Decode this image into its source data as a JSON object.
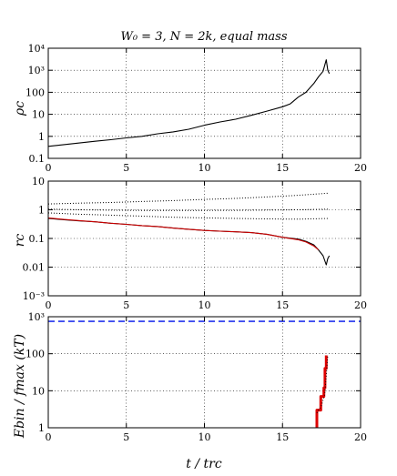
{
  "chart_data": [
    {
      "type": "line",
      "title": "W₀ = 3, N = 2k, equal mass",
      "ylabel": "ρc",
      "xlabel": "",
      "log_y": true,
      "xlim": [
        0,
        20
      ],
      "ylim": [
        0.1,
        10000
      ],
      "grid": true,
      "x_ticks": [
        "0",
        "5",
        "10",
        "15",
        "20"
      ],
      "y_ticks": [
        "0.1",
        "1",
        "10",
        "100",
        "10³",
        "10⁴"
      ],
      "series": [
        {
          "color": "#000000",
          "style": "solid",
          "x": [
            0,
            1,
            2,
            3,
            4,
            5,
            6,
            7,
            8,
            9,
            10,
            11,
            12,
            13,
            14,
            15,
            15.5,
            16,
            16.5,
            17,
            17.3,
            17.6,
            17.8,
            17.9,
            18
          ],
          "y": [
            0.35,
            0.42,
            0.5,
            0.6,
            0.7,
            0.85,
            1.0,
            1.3,
            1.6,
            2.1,
            3.2,
            4.5,
            6,
            9,
            14,
            22,
            30,
            60,
            100,
            250,
            500,
            900,
            3000,
            1000,
            700
          ]
        }
      ]
    },
    {
      "type": "line",
      "ylabel": "rc",
      "xlabel": "",
      "log_y": true,
      "xlim": [
        0,
        20
      ],
      "ylim": [
        0.001,
        10
      ],
      "grid": true,
      "x_ticks": [
        "0",
        "5",
        "10",
        "15",
        "20"
      ],
      "y_ticks": [
        "10⁻³",
        "0.01",
        "0.1",
        "1",
        "10"
      ],
      "series": [
        {
          "color": "#000000",
          "style": "dotted",
          "x": [
            0,
            2,
            4,
            6,
            8,
            10,
            12,
            14,
            15,
            16,
            17,
            18
          ],
          "y": [
            1.6,
            1.7,
            1.8,
            1.95,
            2.1,
            2.3,
            2.5,
            2.8,
            3.0,
            3.2,
            3.5,
            3.8
          ]
        },
        {
          "color": "#000000",
          "style": "dotted",
          "x": [
            0,
            2,
            4,
            6,
            8,
            10,
            12,
            14,
            16,
            18
          ],
          "y": [
            1.05,
            1.0,
            0.97,
            0.95,
            0.95,
            0.95,
            0.96,
            0.98,
            1.0,
            1.05
          ]
        },
        {
          "color": "#000000",
          "style": "dotted",
          "x": [
            0,
            2,
            4,
            6,
            8,
            10,
            12,
            14,
            16,
            18
          ],
          "y": [
            0.78,
            0.7,
            0.65,
            0.6,
            0.55,
            0.52,
            0.5,
            0.48,
            0.47,
            0.5
          ]
        },
        {
          "color": "#000000",
          "style": "solid",
          "x": [
            0,
            1,
            2,
            3,
            4,
            5,
            6,
            7,
            8,
            9,
            10,
            11,
            12,
            13,
            14,
            15,
            16,
            16.5,
            17,
            17.3,
            17.6,
            17.8,
            17.9,
            18
          ],
          "y": [
            0.5,
            0.45,
            0.41,
            0.38,
            0.34,
            0.31,
            0.28,
            0.26,
            0.23,
            0.21,
            0.19,
            0.18,
            0.17,
            0.16,
            0.14,
            0.11,
            0.095,
            0.08,
            0.06,
            0.04,
            0.025,
            0.012,
            0.02,
            0.025
          ]
        },
        {
          "color": "#cc0000",
          "style": "solid",
          "x": [
            0,
            1,
            2,
            3,
            4,
            5,
            6,
            7,
            8,
            9,
            10,
            11,
            12,
            13,
            14,
            15,
            16,
            16.5,
            17,
            17.3
          ],
          "y": [
            0.52,
            0.46,
            0.42,
            0.38,
            0.34,
            0.31,
            0.28,
            0.26,
            0.23,
            0.21,
            0.19,
            0.18,
            0.17,
            0.16,
            0.14,
            0.11,
            0.09,
            0.075,
            0.055,
            0.04
          ]
        }
      ]
    },
    {
      "type": "line",
      "ylabel": "Ebin / fmax (kT)",
      "xlabel": "t / trc",
      "log_y": true,
      "xlim": [
        0,
        20
      ],
      "ylim": [
        1,
        1000
      ],
      "grid": true,
      "x_ticks": [
        "0",
        "5",
        "10",
        "15",
        "20"
      ],
      "y_ticks": [
        "1",
        "10",
        "100",
        "10³"
      ],
      "series": [
        {
          "color": "#2233ee",
          "style": "dashed",
          "x": [
            0,
            20
          ],
          "y": [
            750,
            750
          ]
        },
        {
          "color": "#dd0000",
          "style": "steps",
          "x": [
            17.2,
            17.2,
            17.45,
            17.45,
            17.65,
            17.65,
            17.72,
            17.72,
            17.8,
            17.8
          ],
          "y": [
            1,
            3,
            3,
            7,
            7,
            12,
            12,
            40,
            40,
            90
          ]
        },
        {
          "color": "#000000",
          "style": "dotted",
          "x": [
            17.2,
            17.5,
            17.7,
            17.8,
            17.9
          ],
          "y": [
            2.5,
            4,
            8,
            25,
            90
          ]
        }
      ]
    }
  ]
}
